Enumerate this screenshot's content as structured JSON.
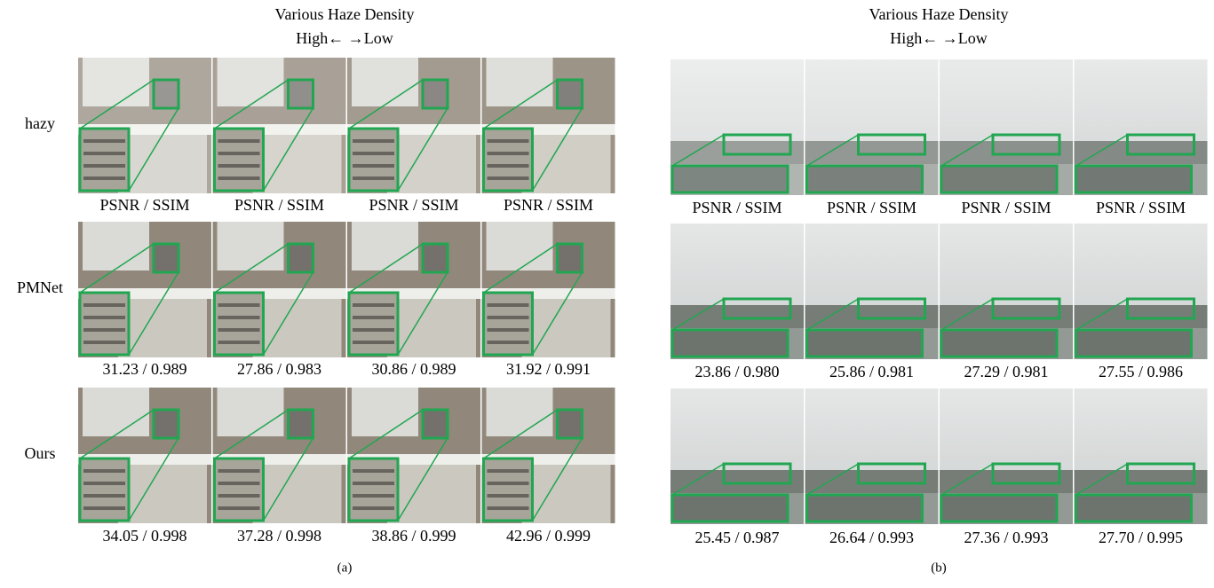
{
  "panels": [
    {
      "title": [
        "Various Haze Density",
        "High←    →Low"
      ],
      "row_labels": [
        "hazy",
        "PMNet",
        "Ours"
      ],
      "rows": [
        [
          "PSNR / SSIM",
          "PSNR / SSIM",
          "PSNR / SSIM",
          "PSNR / SSIM"
        ],
        [
          "31.23 / 0.989",
          "27.86 / 0.983",
          "30.86 / 0.989",
          "31.92 / 0.991"
        ],
        [
          "34.05 / 0.998",
          "37.28 / 0.998",
          "38.86 / 0.999",
          "42.96 / 0.999"
        ]
      ],
      "label": "(a)"
    },
    {
      "title": [
        "Various Haze Density",
        "High←    →Low"
      ],
      "rows": [
        [
          "PSNR / SSIM",
          "PSNR / SSIM",
          "PSNR / SSIM",
          "PSNR / SSIM"
        ],
        [
          "23.86 / 0.980",
          "25.86 / 0.981",
          "27.29 / 0.981",
          "27.55 / 0.986"
        ],
        [
          "25.45 / 0.987",
          "26.64 / 0.993",
          "27.36 / 0.993",
          "27.70 / 0.995"
        ]
      ],
      "label": "(b)"
    }
  ]
}
